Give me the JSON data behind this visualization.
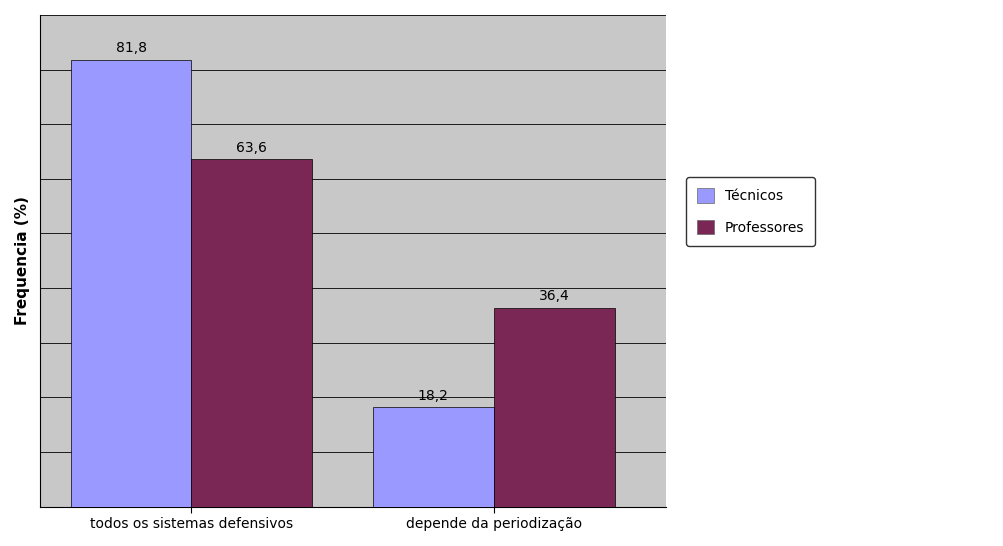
{
  "categories": [
    "todos os sistemas defensivos",
    "depende da periodização"
  ],
  "tecnicos": [
    81.8,
    18.2
  ],
  "professores": [
    63.6,
    36.4
  ],
  "tecnicos_color": "#9999FF",
  "professores_color": "#7B2755",
  "ylabel": "Frequencia (%)",
  "ylim": [
    0,
    90
  ],
  "yticks": [
    10,
    20,
    30,
    40,
    50,
    60,
    70,
    80,
    90
  ],
  "legend_tecnicos": "Técnicos",
  "legend_professores": "Professores",
  "bar_width": 0.28,
  "background_color": "#ffffff",
  "plot_bg_color": "#C8C8C8",
  "label_fontsize": 10,
  "axis_label_fontsize": 11
}
